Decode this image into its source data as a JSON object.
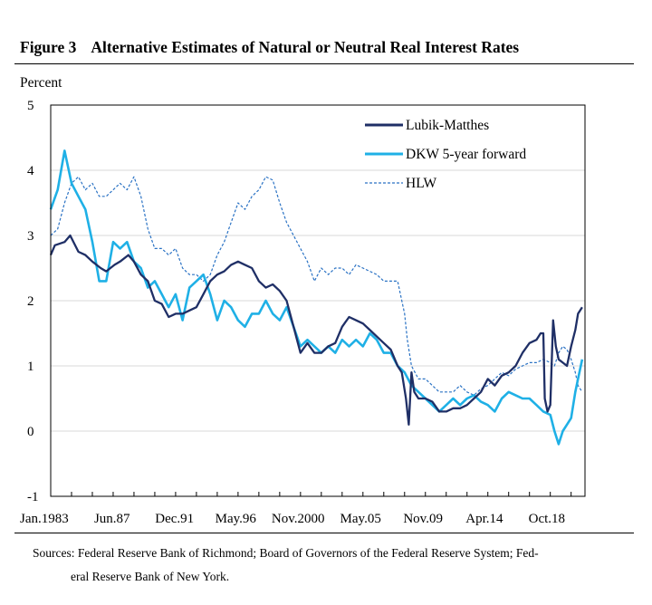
{
  "figure": {
    "number": "Figure 3",
    "title": "Alternative Estimates of Natural or Neutral Real Interest Rates"
  },
  "sources": {
    "line1": "Sources: Federal Reserve Bank of Richmond; Board of Governors of the Federal Reserve System; Fed-",
    "line2": "eral Reserve Bank of New York."
  },
  "chart_data": {
    "type": "line",
    "title": "Alternative Estimates of Natural or Neutral Real Interest Rates",
    "ylabel": "Percent",
    "xlabel": "",
    "ylim": [
      -1,
      5
    ],
    "xlim": [
      1983.0,
      2021.5
    ],
    "yticks": [
      -1,
      0,
      1,
      2,
      3,
      4,
      5
    ],
    "xticklabels": [
      {
        "label": "Jan.1983",
        "x": 1983.0
      },
      {
        "label": "Jun.87",
        "x": 1987.42
      },
      {
        "label": "Dec.91",
        "x": 1991.92
      },
      {
        "label": "May.96",
        "x": 1996.33
      },
      {
        "label": "Nov.2000",
        "x": 2000.83
      },
      {
        "label": "May.05",
        "x": 2005.33
      },
      {
        "label": "Nov.09",
        "x": 2009.83
      },
      {
        "label": "Apr.14",
        "x": 2014.25
      },
      {
        "label": "Oct.18",
        "x": 2018.75
      }
    ],
    "minor_ticks": [
      1984.5,
      1986,
      1987.5,
      1989,
      1990.5,
      1992,
      1993.5,
      1995,
      1996.5,
      1998,
      1999.5,
      2001,
      2002.5,
      2004,
      2005.5,
      2007,
      2008.5,
      2010,
      2011.5,
      2013,
      2014.5,
      2016,
      2017.5,
      2019,
      2020.5
    ],
    "grid": "horizontal",
    "legend_position": "top-right",
    "series": [
      {
        "name": "Lubik-Matthes",
        "color": "#1f2f66",
        "style": "solid-thick",
        "x": [
          1983.0,
          1983.3,
          1984.0,
          1984.4,
          1985.0,
          1985.5,
          1986.0,
          1986.6,
          1987.0,
          1987.6,
          1988.0,
          1988.6,
          1989.0,
          1989.5,
          1990.0,
          1990.5,
          1991.0,
          1991.5,
          1992.0,
          1992.5,
          1993.0,
          1993.5,
          1994.0,
          1994.5,
          1995.0,
          1995.5,
          1996.0,
          1996.5,
          1997.0,
          1997.5,
          1998.0,
          1998.5,
          1999.0,
          1999.5,
          2000.0,
          2000.5,
          2001.0,
          2001.5,
          2002.0,
          2002.5,
          2003.0,
          2003.5,
          2004.0,
          2004.5,
          2005.0,
          2005.5,
          2006.0,
          2006.5,
          2007.0,
          2007.5,
          2008.0,
          2008.3,
          2008.6,
          2008.8,
          2008.9,
          2009.0,
          2009.2,
          2009.5,
          2010.0,
          2010.5,
          2011.0,
          2011.5,
          2012.0,
          2012.5,
          2013.0,
          2013.5,
          2014.0,
          2014.5,
          2015.0,
          2015.5,
          2016.0,
          2016.5,
          2017.0,
          2017.5,
          2018.0,
          2018.3,
          2018.5,
          2018.6,
          2018.8,
          2019.0,
          2019.2,
          2019.4,
          2019.6,
          2019.9,
          2020.2,
          2020.5,
          2020.8,
          2021.0,
          2021.3
        ],
        "y": [
          2.7,
          2.85,
          2.9,
          3.0,
          2.75,
          2.7,
          2.6,
          2.5,
          2.45,
          2.55,
          2.6,
          2.7,
          2.6,
          2.4,
          2.3,
          2.0,
          1.95,
          1.75,
          1.8,
          1.8,
          1.85,
          1.9,
          2.1,
          2.3,
          2.4,
          2.45,
          2.55,
          2.6,
          2.55,
          2.5,
          2.3,
          2.2,
          2.25,
          2.15,
          2.0,
          1.6,
          1.2,
          1.35,
          1.2,
          1.2,
          1.3,
          1.35,
          1.6,
          1.75,
          1.7,
          1.65,
          1.55,
          1.45,
          1.35,
          1.25,
          1.0,
          0.9,
          0.5,
          0.1,
          0.5,
          0.9,
          0.6,
          0.5,
          0.5,
          0.45,
          0.3,
          0.3,
          0.35,
          0.35,
          0.4,
          0.5,
          0.6,
          0.8,
          0.7,
          0.85,
          0.9,
          1.0,
          1.2,
          1.35,
          1.4,
          1.5,
          1.5,
          0.5,
          0.3,
          0.4,
          1.7,
          1.3,
          1.1,
          1.05,
          1.0,
          1.3,
          1.55,
          1.8,
          1.9
        ]
      },
      {
        "name": "DKW 5-year forward",
        "color": "#1fb0e6",
        "style": "solid-thick",
        "x": [
          1983.0,
          1983.5,
          1984.0,
          1984.5,
          1985.0,
          1985.5,
          1986.0,
          1986.5,
          1987.0,
          1987.5,
          1988.0,
          1988.5,
          1989.0,
          1989.5,
          1990.0,
          1990.5,
          1991.0,
          1991.5,
          1992.0,
          1992.5,
          1993.0,
          1993.5,
          1994.0,
          1994.5,
          1995.0,
          1995.5,
          1996.0,
          1996.5,
          1997.0,
          1997.5,
          1998.0,
          1998.5,
          1999.0,
          1999.5,
          2000.0,
          2000.5,
          2001.0,
          2001.5,
          2002.0,
          2002.5,
          2003.0,
          2003.5,
          2004.0,
          2004.5,
          2005.0,
          2005.5,
          2006.0,
          2006.5,
          2007.0,
          2007.5,
          2008.0,
          2008.5,
          2009.0,
          2009.5,
          2010.0,
          2010.5,
          2011.0,
          2011.5,
          2012.0,
          2012.5,
          2013.0,
          2013.5,
          2014.0,
          2014.5,
          2015.0,
          2015.5,
          2016.0,
          2016.5,
          2017.0,
          2017.5,
          2018.0,
          2018.5,
          2019.0,
          2019.3,
          2019.6,
          2019.9,
          2020.2,
          2020.5,
          2020.8,
          2021.0,
          2021.3
        ],
        "y": [
          3.4,
          3.7,
          4.3,
          3.8,
          3.6,
          3.4,
          2.9,
          2.3,
          2.3,
          2.9,
          2.8,
          2.9,
          2.6,
          2.5,
          2.2,
          2.3,
          2.1,
          1.9,
          2.1,
          1.7,
          2.2,
          2.3,
          2.4,
          2.1,
          1.7,
          2.0,
          1.9,
          1.7,
          1.6,
          1.8,
          1.8,
          2.0,
          1.8,
          1.7,
          1.9,
          1.6,
          1.3,
          1.4,
          1.3,
          1.2,
          1.3,
          1.2,
          1.4,
          1.3,
          1.4,
          1.3,
          1.5,
          1.4,
          1.2,
          1.2,
          1.0,
          0.9,
          0.7,
          0.6,
          0.5,
          0.4,
          0.3,
          0.4,
          0.5,
          0.4,
          0.5,
          0.55,
          0.45,
          0.4,
          0.3,
          0.5,
          0.6,
          0.55,
          0.5,
          0.5,
          0.4,
          0.3,
          0.25,
          0.0,
          -0.2,
          0.0,
          0.1,
          0.2,
          0.6,
          0.8,
          1.1
        ]
      },
      {
        "name": "HLW",
        "color": "#2a72c4",
        "style": "dashed-thin",
        "x": [
          1983.0,
          1983.5,
          1984.0,
          1984.5,
          1985.0,
          1985.5,
          1986.0,
          1986.5,
          1987.0,
          1987.5,
          1988.0,
          1988.5,
          1989.0,
          1989.5,
          1990.0,
          1990.5,
          1991.0,
          1991.5,
          1992.0,
          1992.5,
          1993.0,
          1993.5,
          1994.0,
          1994.5,
          1995.0,
          1995.5,
          1996.0,
          1996.5,
          1997.0,
          1997.5,
          1998.0,
          1998.5,
          1999.0,
          1999.5,
          2000.0,
          2000.5,
          2001.0,
          2001.5,
          2002.0,
          2002.5,
          2003.0,
          2003.5,
          2004.0,
          2004.5,
          2005.0,
          2005.5,
          2006.0,
          2006.5,
          2007.0,
          2007.5,
          2008.0,
          2008.3,
          2008.5,
          2008.7,
          2009.0,
          2009.5,
          2010.0,
          2010.5,
          2011.0,
          2011.5,
          2012.0,
          2012.5,
          2013.0,
          2013.5,
          2014.0,
          2014.5,
          2015.0,
          2015.5,
          2016.0,
          2016.5,
          2017.0,
          2017.5,
          2018.0,
          2018.5,
          2019.0,
          2019.3,
          2019.6,
          2019.9,
          2020.2,
          2020.5,
          2020.8,
          2021.0,
          2021.3
        ],
        "y": [
          3.0,
          3.1,
          3.5,
          3.8,
          3.9,
          3.7,
          3.8,
          3.6,
          3.6,
          3.7,
          3.8,
          3.7,
          3.9,
          3.6,
          3.1,
          2.8,
          2.8,
          2.7,
          2.8,
          2.5,
          2.4,
          2.4,
          2.3,
          2.4,
          2.7,
          2.9,
          3.2,
          3.5,
          3.4,
          3.6,
          3.7,
          3.9,
          3.85,
          3.5,
          3.2,
          3.0,
          2.8,
          2.6,
          2.3,
          2.5,
          2.4,
          2.5,
          2.5,
          2.4,
          2.55,
          2.5,
          2.45,
          2.4,
          2.3,
          2.3,
          2.3,
          2.0,
          1.8,
          1.4,
          1.0,
          0.8,
          0.8,
          0.7,
          0.6,
          0.6,
          0.6,
          0.7,
          0.6,
          0.55,
          0.65,
          0.7,
          0.8,
          0.9,
          0.85,
          0.95,
          1.0,
          1.05,
          1.05,
          1.1,
          1.05,
          1.0,
          1.2,
          1.3,
          1.25,
          1.1,
          0.9,
          0.7,
          0.6
        ]
      }
    ]
  }
}
